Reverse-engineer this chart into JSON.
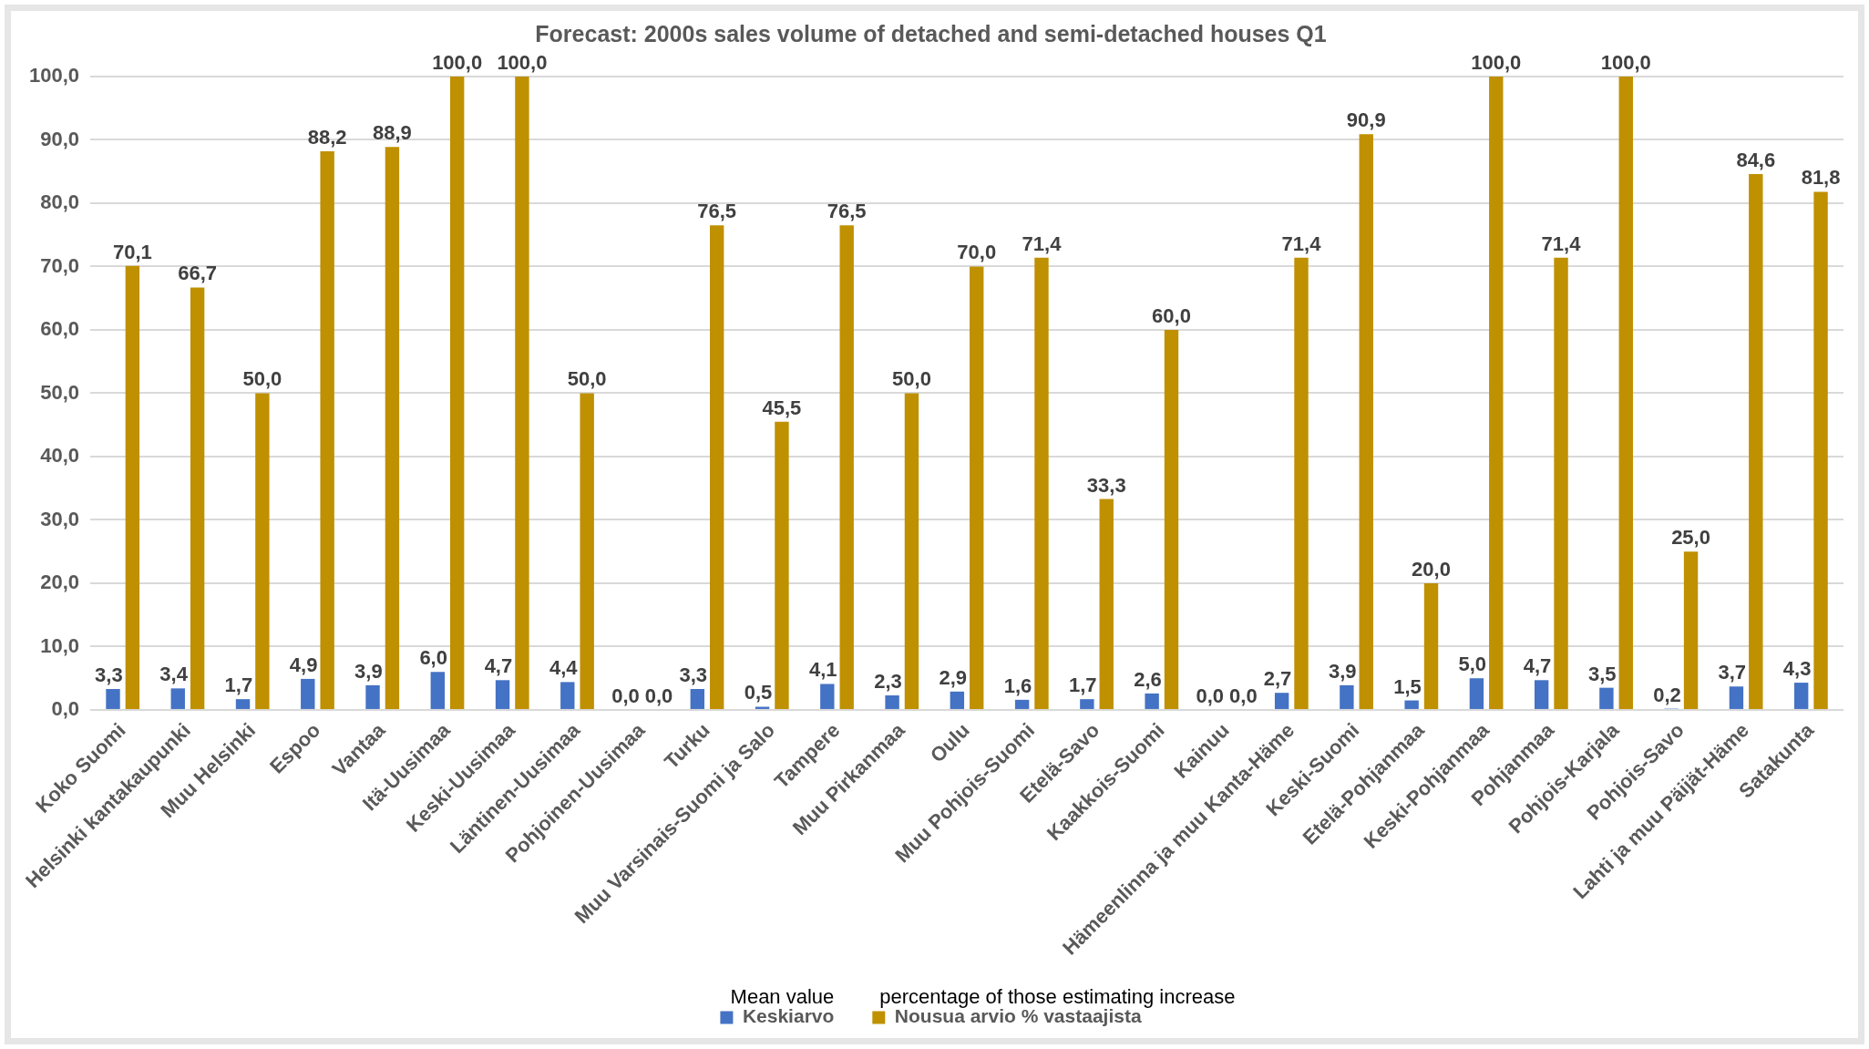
{
  "chart_data": {
    "type": "bar",
    "title": "Forecast: 2000s sales volume of detached and semi-detached houses Q1",
    "categories": [
      "Koko Suomi",
      "Helsinki kantakaupunki",
      "Muu Helsinki",
      "Espoo",
      "Vantaa",
      "Itä-Uusimaa",
      "Keski-Uusimaa",
      "Läntinen-Uusimaa",
      "Pohjoinen-Uusimaa",
      "Turku",
      "Muu Varsinais-Suomi ja Salo",
      "Tampere",
      "Muu Pirkanmaa",
      "Oulu",
      "Muu Pohjois-Suomi",
      "Etelä-Savo",
      "Kaakkois-Suomi",
      "Kainuu",
      "Hämeenlinna ja muu Kanta-Häme",
      "Keski-Suomi",
      "Etelä-Pohjanmaa",
      "Keski-Pohjanmaa",
      "Pohjanmaa",
      "Pohjois-Karjala",
      "Pohjois-Savo",
      "Lahti ja muu Päijät-Häme",
      "Satakunta"
    ],
    "series": [
      {
        "name": "Keskiarvo",
        "color": "#4472c4",
        "values": [
          3.3,
          3.4,
          1.7,
          4.9,
          3.9,
          6.0,
          4.7,
          4.4,
          0.0,
          3.3,
          0.5,
          4.1,
          2.3,
          2.9,
          1.6,
          1.7,
          2.6,
          0.0,
          2.7,
          3.9,
          1.5,
          5.0,
          4.7,
          3.5,
          0.2,
          3.7,
          4.3
        ],
        "value_labels": [
          "3,3",
          "3,4",
          "1,7",
          "4,9",
          "3,9",
          "6,0",
          "4,7",
          "4,4",
          "0,0",
          "3,3",
          "0,5",
          "4,1",
          "2,3",
          "2,9",
          "1,6",
          "1,7",
          "2,6",
          "0,0",
          "2,7",
          "3,9",
          "1,5",
          "5,0",
          "4,7",
          "3,5",
          "0,2",
          "3,7",
          "4,3"
        ]
      },
      {
        "name": "Nousua arvio % vastaajista",
        "color": "#bf9000",
        "values": [
          70.1,
          66.7,
          50.0,
          88.2,
          88.9,
          100.0,
          100.0,
          50.0,
          0.0,
          76.5,
          45.5,
          76.5,
          50.0,
          70.0,
          71.4,
          33.3,
          60.0,
          0.0,
          71.4,
          90.9,
          20.0,
          100.0,
          71.4,
          100.0,
          25.0,
          84.6,
          81.8
        ],
        "value_labels": [
          "70,1",
          "66,7",
          "50,0",
          "88,2",
          "88,9",
          "100,0",
          "100,0",
          "50,0",
          "0,0",
          "76,5",
          "45,5",
          "76,5",
          "50,0",
          "70,0",
          "71,4",
          "33,3",
          "60,0",
          "0,0",
          "71,4",
          "90,9",
          "20,0",
          "100,0",
          "71,4",
          "100,0",
          "25,0",
          "84,6",
          "81,8"
        ]
      }
    ],
    "ylim": [
      0,
      100
    ],
    "yticks": [
      {
        "value": 0,
        "label": "0,0"
      },
      {
        "value": 10,
        "label": "10,0"
      },
      {
        "value": 20,
        "label": "20,0"
      },
      {
        "value": 30,
        "label": "30,0"
      },
      {
        "value": 40,
        "label": "40,0"
      },
      {
        "value": 50,
        "label": "50,0"
      },
      {
        "value": 60,
        "label": "60,0"
      },
      {
        "value": 70,
        "label": "70,0"
      },
      {
        "value": 80,
        "label": "80,0"
      },
      {
        "value": 90,
        "label": "90,0"
      },
      {
        "value": 100,
        "label": "100,0"
      }
    ],
    "grid": "y",
    "legend": "bottom",
    "annotations": [
      "Mean value",
      "percentage of those estimating increase"
    ]
  }
}
